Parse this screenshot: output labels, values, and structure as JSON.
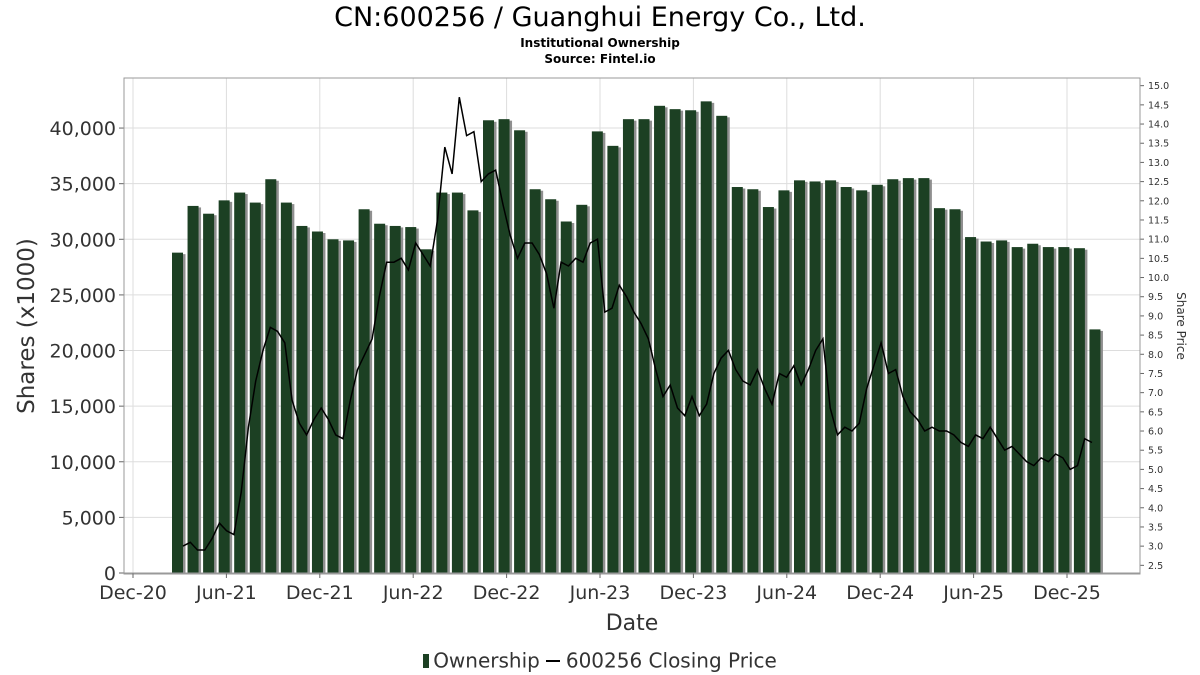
{
  "title": "CN:600256 / Guanghui Energy Co., Ltd.",
  "subtitle": "Institutional Ownership",
  "source": "Source: Fintel.io",
  "colors": {
    "bar": "#1c4023",
    "bar_shadow": "#8f8f8f",
    "line": "#000000",
    "grid": "#dddddd"
  },
  "legend": {
    "ownership_label": "Ownership",
    "price_label": "600256 Closing Price"
  },
  "chart_data": {
    "type": "bar",
    "xlabel": "Date",
    "ylabel": "Shares (x1000)",
    "y2label": "Share Price",
    "ylim": [
      0,
      44500
    ],
    "y2lim": [
      2.3,
      15.2
    ],
    "yticks": [
      "0",
      "5,000",
      "10,000",
      "15,000",
      "20,000",
      "25,000",
      "30,000",
      "35,000",
      "40,000"
    ],
    "y2ticks": [
      "2.5",
      "3.0",
      "3.5",
      "4.0",
      "4.5",
      "5.0",
      "5.5",
      "6.0",
      "6.5",
      "7.0",
      "7.5",
      "8.0",
      "8.5",
      "9.0",
      "9.5",
      "10.0",
      "10.5",
      "11.0",
      "11.5",
      "12.0",
      "12.5",
      "13.0",
      "13.5",
      "14.0",
      "14.5",
      "15.0"
    ],
    "xticks": [
      "Dec-20",
      "Jun-21",
      "Dec-21",
      "Jun-22",
      "Dec-22",
      "Jun-23",
      "Dec-23",
      "Jun-24",
      "Dec-24",
      "Jun-25",
      "Dec-25"
    ],
    "grid": true,
    "legend_position": "bottom",
    "series": [
      {
        "name": "Ownership",
        "type": "bar",
        "values": [
          28800,
          33000,
          32300,
          33500,
          34200,
          33300,
          35400,
          33300,
          31200,
          30700,
          30000,
          29900,
          32700,
          31400,
          31200,
          31100,
          29100,
          34200,
          34200,
          32600,
          40700,
          40800,
          39800,
          34500,
          33600,
          31600,
          33100,
          39700,
          38400,
          40800,
          40800,
          42000,
          41700,
          41600,
          42400,
          41100,
          34700,
          34500,
          32900,
          34400,
          35300,
          35200,
          35300,
          34700,
          34400,
          34900,
          35400,
          35500,
          35500,
          32800,
          32700,
          30200,
          29800,
          29900,
          29300,
          29600,
          29300,
          29300,
          29200,
          21900
        ]
      },
      {
        "name": "600256 Closing Price",
        "type": "line",
        "values": [
          3.0,
          3.1,
          2.9,
          2.9,
          3.2,
          3.6,
          3.4,
          3.3,
          4.4,
          6.1,
          7.3,
          8.1,
          8.7,
          8.6,
          8.3,
          6.8,
          6.2,
          5.9,
          6.3,
          6.6,
          6.3,
          5.9,
          5.8,
          6.8,
          7.6,
          8.0,
          8.4,
          9.5,
          10.4,
          10.4,
          10.5,
          10.2,
          10.9,
          10.6,
          10.3,
          11.5,
          13.4,
          12.7,
          14.7,
          13.7,
          13.8,
          12.5,
          12.7,
          12.8,
          11.9,
          11.1,
          10.5,
          10.9,
          10.9,
          10.6,
          10.1,
          9.2,
          10.4,
          10.3,
          10.5,
          10.4,
          10.9,
          11.0,
          9.1,
          9.2,
          9.8,
          9.5,
          9.1,
          8.8,
          8.4,
          7.6,
          6.9,
          7.2,
          6.6,
          6.4,
          6.9,
          6.4,
          6.7,
          7.5,
          7.9,
          8.1,
          7.6,
          7.3,
          7.2,
          7.6,
          7.1,
          6.7,
          7.5,
          7.4,
          7.7,
          7.2,
          7.6,
          8.1,
          8.4,
          6.6,
          5.9,
          6.1,
          6.0,
          6.2,
          7.1,
          7.7,
          8.3,
          7.5,
          7.6,
          6.9,
          6.5,
          6.3,
          6.0,
          6.1,
          6.0,
          6.0,
          5.9,
          5.7,
          5.6,
          5.9,
          5.8,
          6.1,
          5.8,
          5.5,
          5.6,
          5.4,
          5.2,
          5.1,
          5.3,
          5.2,
          5.4,
          5.3,
          5.0,
          5.1,
          5.8,
          5.7
        ]
      }
    ]
  }
}
